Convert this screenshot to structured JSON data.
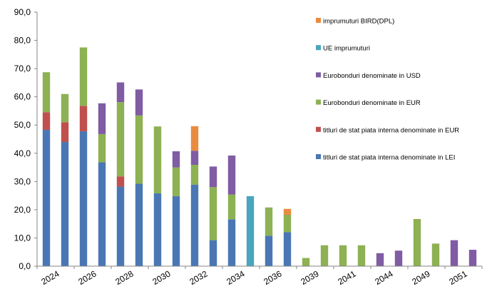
{
  "chart_data": {
    "type": "bar",
    "stacked": true,
    "categories": [
      "2024",
      "2025",
      "2026",
      "2027",
      "2028",
      "2029",
      "2030",
      "2031",
      "2032",
      "2033",
      "2034",
      "2035",
      "2036",
      "2037",
      "2039",
      "2040",
      "2041",
      "2042",
      "2044",
      "2045",
      "2049",
      "2050",
      "2051",
      "2052"
    ],
    "x_tick_labels": [
      "2024",
      "2026",
      "2028",
      "2030",
      "2032",
      "2034",
      "2036",
      "2039",
      "2041",
      "2044",
      "2049",
      "2051"
    ],
    "ylim": [
      0,
      90
    ],
    "yticks": [
      "0,0",
      "10,0",
      "20,0",
      "30,0",
      "40,0",
      "50,0",
      "60,0",
      "70,0",
      "80,0",
      "90,0"
    ],
    "grid": false,
    "legend_position": "right",
    "title": "",
    "xlabel": "",
    "ylabel": "",
    "series": [
      {
        "name": "titluri de stat piata interna denominate  in LEI",
        "color": "#4a77b4",
        "values": [
          48.3,
          44.0,
          47.8,
          36.8,
          28.2,
          29.2,
          25.8,
          24.8,
          28.9,
          9.2,
          16.6,
          0,
          10.8,
          12.0,
          0,
          0,
          0,
          0,
          0,
          0,
          0,
          0,
          0,
          0
        ]
      },
      {
        "name": "titluri de stat piata interna denominate  in EUR",
        "color": "#c0504d",
        "values": [
          6.2,
          7.0,
          9.0,
          0,
          3.6,
          0,
          0,
          0,
          0,
          0,
          0,
          0,
          0,
          0,
          0,
          0,
          0,
          0,
          0,
          0,
          0,
          0,
          0,
          0
        ]
      },
      {
        "name": "Eurobonduri  denominate in EUR",
        "color": "#8db153",
        "values": [
          14.2,
          10.0,
          20.7,
          10.0,
          26.3,
          24.2,
          23.7,
          10.2,
          7.0,
          18.8,
          8.8,
          0,
          10.0,
          6.2,
          2.9,
          7.4,
          7.4,
          7.4,
          0,
          0,
          16.7,
          8.0,
          0,
          0
        ]
      },
      {
        "name": "Eurobonduri denominate in USD",
        "color": "#7f5ca3",
        "values": [
          0,
          0,
          0,
          10.9,
          7.0,
          9.2,
          0,
          5.7,
          5.0,
          7.3,
          13.8,
          0,
          0,
          0,
          0,
          0,
          0,
          0,
          4.6,
          5.5,
          0,
          0,
          9.2,
          5.8
        ]
      },
      {
        "name": "UE imprumuturi",
        "color": "#4aa5be",
        "values": [
          0,
          0,
          0,
          0,
          0,
          0,
          0,
          0,
          0,
          0,
          0,
          24.8,
          0,
          0,
          0,
          0,
          0,
          0,
          0,
          0,
          0,
          0,
          0,
          0
        ]
      },
      {
        "name": "imprumuturi BIRD(DPL)",
        "color": "#e98c40",
        "values": [
          0,
          0,
          0,
          0,
          0,
          0,
          0,
          0,
          8.7,
          0,
          0,
          0,
          0,
          2.1,
          0,
          0,
          0,
          0,
          0,
          0,
          0,
          0,
          0,
          0
        ]
      }
    ]
  }
}
